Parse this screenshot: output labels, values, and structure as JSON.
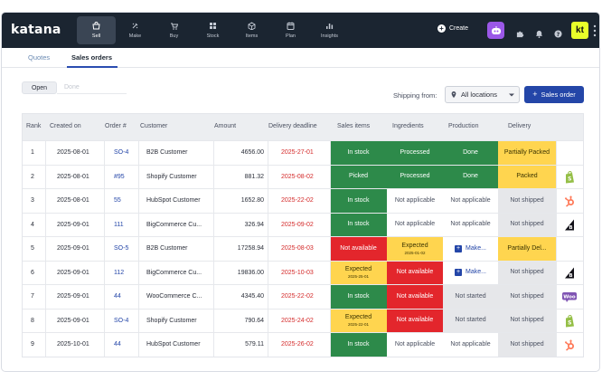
{
  "app": {
    "logo": "katana"
  },
  "nav": [
    {
      "label": "Sell",
      "icon": "sell-icon",
      "active": true
    },
    {
      "label": "Make",
      "icon": "make-icon",
      "active": false
    },
    {
      "label": "Buy",
      "icon": "buy-icon",
      "active": false
    },
    {
      "label": "Stock",
      "icon": "stock-icon",
      "active": false
    },
    {
      "label": "Items",
      "icon": "items-icon",
      "active": false
    },
    {
      "label": "Plan",
      "icon": "plan-icon",
      "active": false
    },
    {
      "label": "Insights",
      "icon": "insights-icon",
      "active": false
    }
  ],
  "topbar": {
    "create_label": "Create",
    "avatar_initials": "kt"
  },
  "subtabs": {
    "quotes": "Quotes",
    "sales_orders": "Sales orders"
  },
  "toggle": {
    "open": "Open",
    "done": "Done"
  },
  "shipping": {
    "label": "Shipping from:",
    "value": "All locations"
  },
  "sales_order_button": "Sales order",
  "table": {
    "headers": [
      "Rank",
      "Created on",
      "Order #",
      "Customer",
      "Amount",
      "Delivery deadline",
      "Sales items",
      "Ingredients",
      "Production",
      "Delivery"
    ],
    "rows": [
      {
        "rank": "1",
        "created": "2025-08-01",
        "order": "SO-4",
        "customer": "B2B Customer",
        "amount": "4656.00",
        "deadline": "2025-27-01",
        "sales": {
          "text": "In stock",
          "sub": "",
          "status": "green"
        },
        "ingredients": {
          "text": "Processed",
          "sub": "",
          "status": "green"
        },
        "production": {
          "text": "Done",
          "make": false,
          "status": "green"
        },
        "delivery": {
          "text": "Partially Packed",
          "status": "yellow"
        },
        "brand": ""
      },
      {
        "rank": "2",
        "created": "2025-08-01",
        "order": "#95",
        "customer": "Shopify Customer",
        "amount": "881.32",
        "deadline": "2025-08-02",
        "sales": {
          "text": "Picked",
          "sub": "",
          "status": "green"
        },
        "ingredients": {
          "text": "Processed",
          "sub": "",
          "status": "green"
        },
        "production": {
          "text": "Done",
          "make": false,
          "status": "green"
        },
        "delivery": {
          "text": "Packed",
          "status": "yellow"
        },
        "brand": "shopify-icon"
      },
      {
        "rank": "3",
        "created": "2025-08-01",
        "order": "55",
        "customer": "HubSpot Customer",
        "amount": "1652.80",
        "deadline": "2025-22-02",
        "sales": {
          "text": "In stock",
          "sub": "",
          "status": "green"
        },
        "ingredients": {
          "text": "Not applicable",
          "sub": "",
          "status": "white"
        },
        "production": {
          "text": "Not applicable",
          "make": false,
          "status": "white"
        },
        "delivery": {
          "text": "Not shipped",
          "status": "gray"
        },
        "brand": "hubspot-icon"
      },
      {
        "rank": "4",
        "created": "2025-09-01",
        "order": "111",
        "customer": "BigCommerce Cu...",
        "amount": "326.94",
        "deadline": "2025-09-02",
        "sales": {
          "text": "In stock",
          "sub": "",
          "status": "green"
        },
        "ingredients": {
          "text": "Not applicable",
          "sub": "",
          "status": "white"
        },
        "production": {
          "text": "Not applicable",
          "make": false,
          "status": "white"
        },
        "delivery": {
          "text": "Not shipped",
          "status": "gray"
        },
        "brand": "bigcommerce-icon"
      },
      {
        "rank": "5",
        "created": "2025-09-01",
        "order": "SO-5",
        "customer": "B2B Customer",
        "amount": "17258.94",
        "deadline": "2025-08-03",
        "sales": {
          "text": "Not available",
          "sub": "",
          "status": "red"
        },
        "ingredients": {
          "text": "Expected",
          "sub": "2025-01-02",
          "status": "yellow"
        },
        "production": {
          "text": "Make...",
          "make": true,
          "status": "white"
        },
        "delivery": {
          "text": "Partially Del...",
          "status": "yellow"
        },
        "brand": ""
      },
      {
        "rank": "6",
        "created": "2025-09-01",
        "order": "112",
        "customer": "BigCommerce Cu...",
        "amount": "19836.00",
        "deadline": "2025-10-03",
        "sales": {
          "text": "Expected",
          "sub": "2025-25-01",
          "status": "yellow"
        },
        "ingredients": {
          "text": "Not available",
          "sub": "",
          "status": "red"
        },
        "production": {
          "text": "Make...",
          "make": true,
          "status": "white"
        },
        "delivery": {
          "text": "Not shipped",
          "status": "gray"
        },
        "brand": "bigcommerce-icon"
      },
      {
        "rank": "7",
        "created": "2025-09-01",
        "order": "44",
        "customer": "WooCommerce C...",
        "amount": "4345.40",
        "deadline": "2025-22-02",
        "sales": {
          "text": "In stock",
          "sub": "",
          "status": "green"
        },
        "ingredients": {
          "text": "Not available",
          "sub": "",
          "status": "red"
        },
        "production": {
          "text": "Not started",
          "make": false,
          "status": "gray"
        },
        "delivery": {
          "text": "Not shipped",
          "status": "gray"
        },
        "brand": "woocommerce-icon"
      },
      {
        "rank": "8",
        "created": "2025-09-01",
        "order": "SO-4",
        "customer": "Shopify Customer",
        "amount": "790.64",
        "deadline": "2025-24-02",
        "sales": {
          "text": "Expected",
          "sub": "2025-22-01",
          "status": "yellow"
        },
        "ingredients": {
          "text": "Not available",
          "sub": "",
          "status": "red"
        },
        "production": {
          "text": "Not started",
          "make": false,
          "status": "gray"
        },
        "delivery": {
          "text": "Not shipped",
          "status": "gray"
        },
        "brand": "shopify-icon"
      },
      {
        "rank": "9",
        "created": "2025-10-01",
        "order": "44",
        "customer": "HubSpot Customer",
        "amount": "579.11",
        "deadline": "2025-26-02",
        "sales": {
          "text": "In stock",
          "sub": "",
          "status": "green"
        },
        "ingredients": {
          "text": "Not applicable",
          "sub": "",
          "status": "white"
        },
        "production": {
          "text": "Not applicable",
          "make": false,
          "status": "white"
        },
        "delivery": {
          "text": "Not shipped",
          "status": "gray"
        },
        "brand": "hubspot-icon"
      }
    ]
  },
  "colors": {
    "topbar": "#1b2531",
    "accent": "#2446a8",
    "green": "#2d8a4a",
    "yellow": "#ffd54f",
    "red": "#e3262c",
    "gray": "#e6e7ea"
  }
}
